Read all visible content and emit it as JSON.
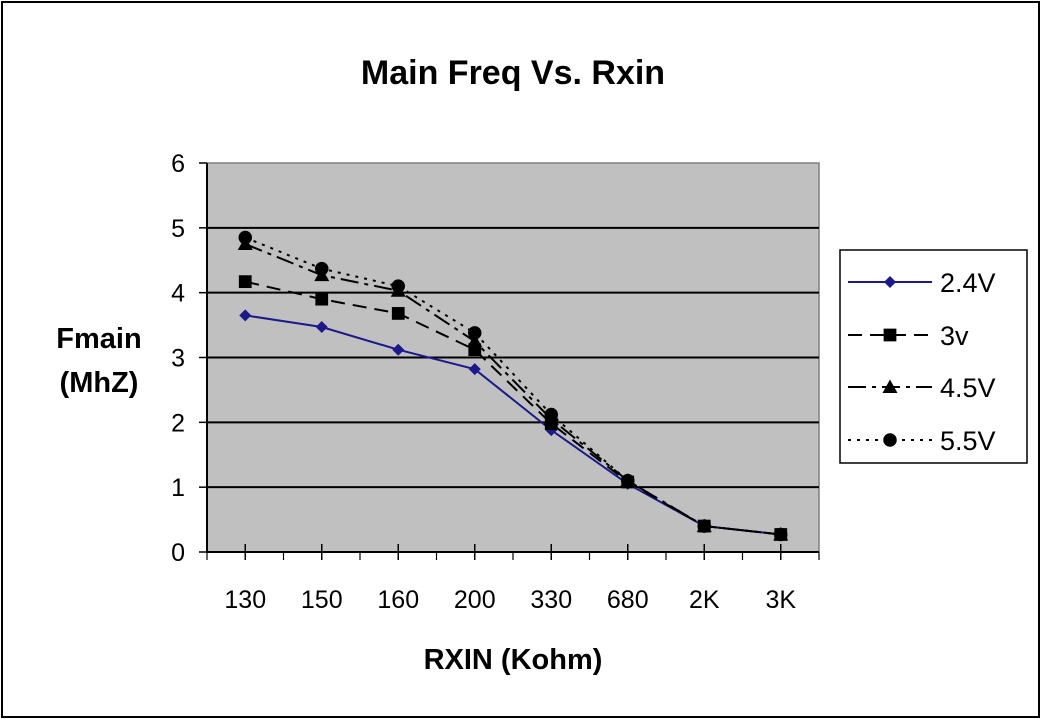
{
  "chart_data": {
    "type": "line",
    "title": "Main Freq Vs. Rxin",
    "xlabel": "RXIN (Kohm)",
    "ylabel_lines": [
      "Fmain",
      "(MhZ)"
    ],
    "categories": [
      "130",
      "150",
      "160",
      "200",
      "330",
      "680",
      "2K",
      "3K"
    ],
    "ylim": [
      0,
      6
    ],
    "yticks": [
      0,
      1,
      2,
      3,
      4,
      5,
      6
    ],
    "grid": true,
    "legend_position": "right",
    "plot_background": "#c0c0c0",
    "series": [
      {
        "name": "2.4V",
        "marker": "diamond",
        "dash": "solid",
        "color": "#1a1a8c",
        "values": [
          3.65,
          3.47,
          3.12,
          2.82,
          1.88,
          1.05,
          0.4,
          0.27
        ]
      },
      {
        "name": "3v",
        "marker": "square",
        "dash": "dash",
        "color": "#000000",
        "values": [
          4.17,
          3.9,
          3.68,
          3.12,
          1.98,
          1.08,
          0.4,
          0.27
        ]
      },
      {
        "name": "4.5V",
        "marker": "triangle",
        "dash": "dashdot",
        "color": "#000000",
        "values": [
          4.75,
          4.27,
          4.03,
          3.25,
          2.05,
          1.1,
          0.4,
          0.27
        ]
      },
      {
        "name": "5.5V",
        "marker": "circle",
        "dash": "dot",
        "color": "#000000",
        "values": [
          4.85,
          4.37,
          4.1,
          3.38,
          2.12,
          1.1,
          0.4,
          0.27
        ]
      }
    ]
  }
}
